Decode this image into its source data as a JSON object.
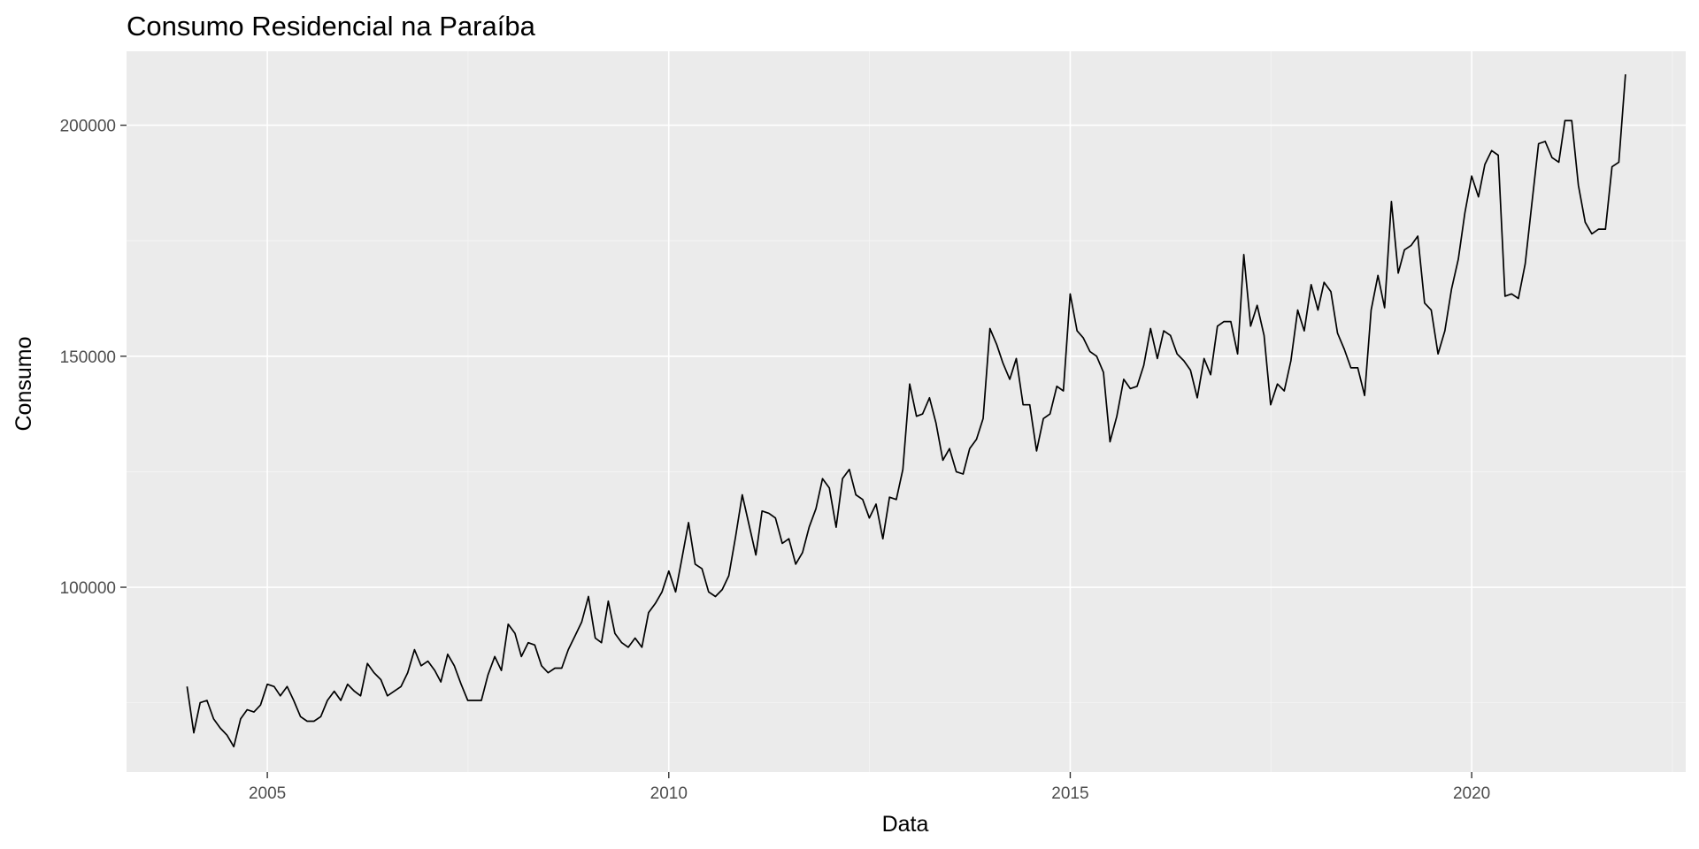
{
  "chart_data": {
    "type": "line",
    "title": "Consumo Residencial na Paraíba",
    "xlabel": "Data",
    "ylabel": "Consumo",
    "xlim": [
      "2003-04-01",
      "2022-09-01"
    ],
    "ylim": [
      60000,
      216000
    ],
    "x_ticks": [
      "2005",
      "2010",
      "2015",
      "2020"
    ],
    "y_ticks": [
      100000,
      150000,
      200000
    ],
    "grid": true,
    "start": "2004-01",
    "frequency": "monthly",
    "series": [
      {
        "values": [
          78500,
          68500,
          75000,
          75500,
          71500,
          69500,
          68000,
          65500,
          71500,
          73500,
          73000,
          74500,
          79000,
          78500,
          76500,
          78500,
          75500,
          72000,
          71000,
          71000,
          72000,
          75500,
          77500,
          75500,
          79000,
          77500,
          76500,
          83500,
          81500,
          80000,
          76500,
          77500,
          78500,
          81500,
          86500,
          83000,
          84000,
          82000,
          79500,
          85500,
          83000,
          79000,
          75500,
          75500,
          75500,
          81000,
          85000,
          82000,
          92000,
          90000,
          85000,
          88000,
          87500,
          83000,
          81500,
          82500,
          82500,
          86500,
          89500,
          92500,
          98000,
          89000,
          88000,
          97000,
          90000,
          88000,
          87000,
          89000,
          87000,
          94500,
          96500,
          99000,
          103500,
          99000,
          106000,
          114000,
          105000,
          104000,
          99000,
          98000,
          99500,
          102500,
          111000,
          120000,
          113500,
          107000,
          116500,
          116000,
          115000,
          109500,
          110500,
          105000,
          107500,
          113000,
          117000,
          123500,
          121500,
          113000,
          123500,
          125500,
          120000,
          119000,
          115000,
          118000,
          110500,
          119500,
          119000,
          125500,
          144000,
          137000,
          137500,
          141000,
          135500,
          127500,
          130000,
          125000,
          124500,
          130000,
          132000,
          136500,
          156000,
          152500,
          148500,
          145000,
          149500,
          139500,
          139500,
          129500,
          136500,
          137500,
          143500,
          142500,
          163500,
          155500,
          154000,
          151000,
          150000,
          146500,
          131500,
          137000,
          145000,
          143000,
          143500,
          148000,
          156000,
          149500,
          155500,
          154500,
          150500,
          149000,
          147000,
          141000,
          149500,
          146000,
          156500,
          157500,
          157500,
          150500,
          172000,
          156500,
          161000,
          154500,
          139500,
          144000,
          142500,
          149000,
          160000,
          155500,
          165500,
          160000,
          166000,
          164000,
          155000,
          151500,
          147500,
          147500,
          141500,
          160000,
          167500,
          160500,
          183500,
          168000,
          173000,
          174000,
          176000,
          161500,
          160000,
          150500,
          155500,
          164500,
          171000,
          181000,
          189000,
          184500,
          191500,
          194500,
          193500,
          163000,
          163500,
          162500,
          170000,
          183000,
          196000,
          196500,
          193000,
          192000,
          201000,
          201000,
          187000,
          179000,
          176500,
          177500,
          177500,
          191000,
          192000,
          211000
        ]
      }
    ]
  }
}
